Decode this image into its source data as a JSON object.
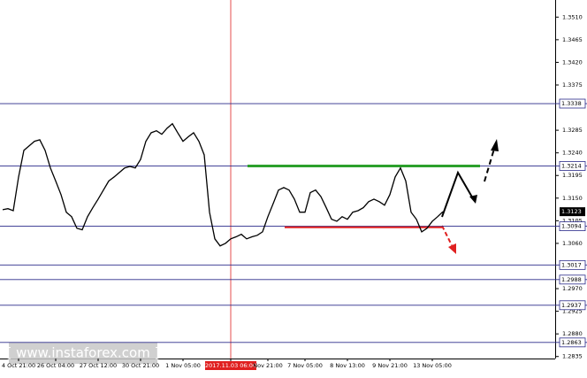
{
  "chart_data": {
    "type": "line",
    "color": "#000000",
    "categories": [
      null,
      null,
      null,
      "4 Oct 21:00",
      null,
      null,
      null,
      null,
      null,
      null,
      "26 Oct 04:00",
      null,
      null,
      null,
      null,
      null,
      null,
      null,
      "27 Oct 12:00",
      null,
      null,
      null,
      null,
      null,
      null,
      null,
      "30 Oct 21:00",
      null,
      null,
      null,
      null,
      null,
      null,
      null,
      "1 Nov 05:00",
      null,
      null,
      null,
      null,
      null,
      null,
      null,
      null,
      "2017.11.03 06:00",
      null,
      null,
      null,
      null,
      null,
      null,
      "Nov 21:00",
      null,
      null,
      null,
      null,
      null,
      null,
      "7 Nov 05:00",
      null,
      null,
      null,
      null,
      null,
      null,
      null,
      "8 Nov 13:00",
      null,
      null,
      null,
      null,
      null,
      null,
      null,
      "9 Nov 21:00",
      null,
      null,
      null,
      null,
      null,
      null,
      null,
      "13 Nov 05:00",
      null,
      null
    ],
    "values": [
      1.3127,
      1.3129,
      1.3125,
      1.3192,
      1.3245,
      1.3254,
      1.3263,
      1.3266,
      1.3245,
      1.321,
      1.3184,
      1.3157,
      1.3122,
      1.3113,
      1.309,
      1.3087,
      1.3113,
      1.3131,
      1.3148,
      1.3166,
      1.3184,
      1.3192,
      1.3201,
      1.321,
      1.3213,
      1.321,
      1.3227,
      1.3263,
      1.328,
      1.3284,
      1.3277,
      1.3289,
      1.3298,
      1.328,
      1.3263,
      1.3272,
      1.328,
      1.3263,
      1.3236,
      1.3122,
      1.3069,
      1.3055,
      1.306,
      1.3069,
      1.3073,
      1.3078,
      1.3069,
      1.3073,
      1.3076,
      1.3083,
      1.3113,
      1.3139,
      1.3166,
      1.3171,
      1.3166,
      1.3148,
      1.3122,
      1.3122,
      1.3161,
      1.3166,
      1.3153,
      1.3131,
      1.3108,
      1.3104,
      1.3113,
      1.3108,
      1.3122,
      1.3125,
      1.3131,
      1.3143,
      1.3148,
      1.3143,
      1.3136,
      1.3157,
      1.3192,
      1.321,
      1.3184,
      1.3122,
      1.3108,
      1.3083,
      1.309,
      1.3104,
      1.3113,
      1.3123
    ],
    "ylim": [
      1.2831,
      1.3544
    ],
    "yticks": [
      {
        "value": 1.351,
        "label": "1.3510"
      },
      1.3465,
      {
        "value": 1.342,
        "label": "1.3420"
      },
      1.3375,
      1.3285,
      {
        "value": 1.324,
        "label": "1.3240"
      },
      1.3195,
      {
        "value": 1.315,
        "label": "1.3150"
      },
      1.3105,
      {
        "value": 1.306,
        "label": "1.3060"
      },
      {
        "value": 1.297,
        "label": "1.2970"
      },
      1.2925,
      {
        "value": 1.288,
        "label": "1.2880"
      },
      1.2835
    ],
    "levels": [
      1.3338,
      1.3214,
      1.3094,
      1.3017,
      1.2988,
      1.2937,
      1.2863
    ],
    "current_price": 1.3123,
    "resistance": 1.3214,
    "support": 1.3092,
    "highlight_index_label": "2017.11.03 06:00",
    "watermark": "[  www.instaforex.com  ]"
  }
}
